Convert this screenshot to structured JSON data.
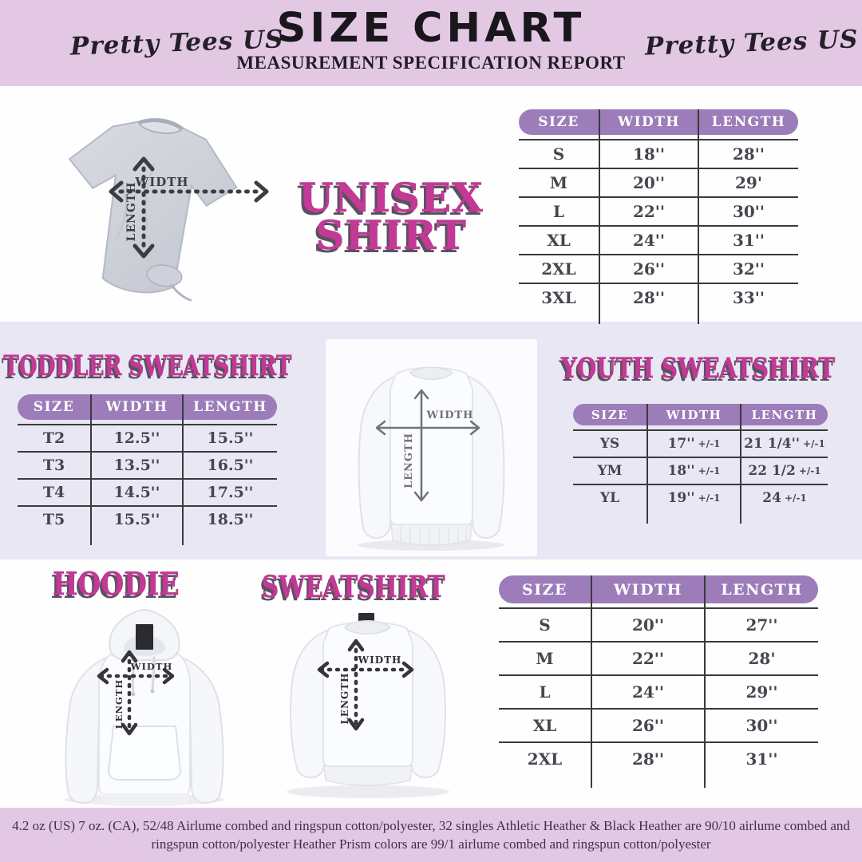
{
  "header": {
    "brand_left": "Pretty Tees US",
    "brand_right": "Pretty Tees US",
    "title": "SIZE CHART",
    "subtitle": "MEASUREMENT SPECIFICATION REPORT"
  },
  "diagram": {
    "width_label": "WIDTH",
    "length_label": "LENGTH"
  },
  "unisex": {
    "title_line1": "UNISEX",
    "title_line2": "SHIRT",
    "table": {
      "headers": [
        "SIZE",
        "WIDTH",
        "LENGTH"
      ],
      "rows": [
        [
          "S",
          "18''",
          "28''"
        ],
        [
          "M",
          "20''",
          "29'"
        ],
        [
          "L",
          "22''",
          "30''"
        ],
        [
          "XL",
          "24''",
          "31''"
        ],
        [
          "2XL",
          "26''",
          "32''"
        ],
        [
          "3XL",
          "28''",
          "33''"
        ]
      ]
    }
  },
  "toddler": {
    "title": "TODDLER SWEATSHIRT",
    "table": {
      "headers": [
        "SIZE",
        "WIDTH",
        "LENGTH"
      ],
      "rows": [
        [
          "T2",
          "12.5''",
          "15.5''"
        ],
        [
          "T3",
          "13.5''",
          "16.5''"
        ],
        [
          "T4",
          "14.5''",
          "17.5''"
        ],
        [
          "T5",
          "15.5''",
          "18.5''"
        ]
      ]
    }
  },
  "youth": {
    "title": "YOUTH SWEATSHIRT",
    "table": {
      "headers": [
        "SIZE",
        "WIDTH",
        "LENGTH"
      ],
      "rows": [
        [
          "YS",
          "17'' +/-1",
          "21 1/4'' +/-1"
        ],
        [
          "YM",
          "18'' +/-1",
          "22 1/2 +/-1"
        ],
        [
          "YL",
          "19'' +/-1",
          "24 +/-1"
        ]
      ]
    }
  },
  "hoodie": {
    "title": "HOODIE"
  },
  "sweatshirt": {
    "title": "SWEATSHIRT"
  },
  "adult_sweats": {
    "table": {
      "headers": [
        "SIZE",
        "WIDTH",
        "LENGTH"
      ],
      "rows": [
        [
          "S",
          "20''",
          "27''"
        ],
        [
          "M",
          "22''",
          "28'"
        ],
        [
          "L",
          "24''",
          "29''"
        ],
        [
          "XL",
          "26''",
          "30''"
        ],
        [
          "2XL",
          "28''",
          "31''"
        ]
      ]
    }
  },
  "footer": {
    "line1": "4.2 oz (US) 7 oz. (CA), 52/48 Airlume combed and ringspun cotton/polyester, 32 singles Athletic Heather & Black Heather are 90/10 airlume combed and",
    "line2": "ringspun cotton/polyester Heather Prism colors are 99/1 airlume combed and ringspun cotton/polyester"
  },
  "colors": {
    "header_bg": "#e3c8e4",
    "mid_band_bg": "#e9e7f3",
    "table_header_bg": "#9d7cba",
    "title_pink": "#c23a96",
    "table_line": "#3a3a3d"
  }
}
